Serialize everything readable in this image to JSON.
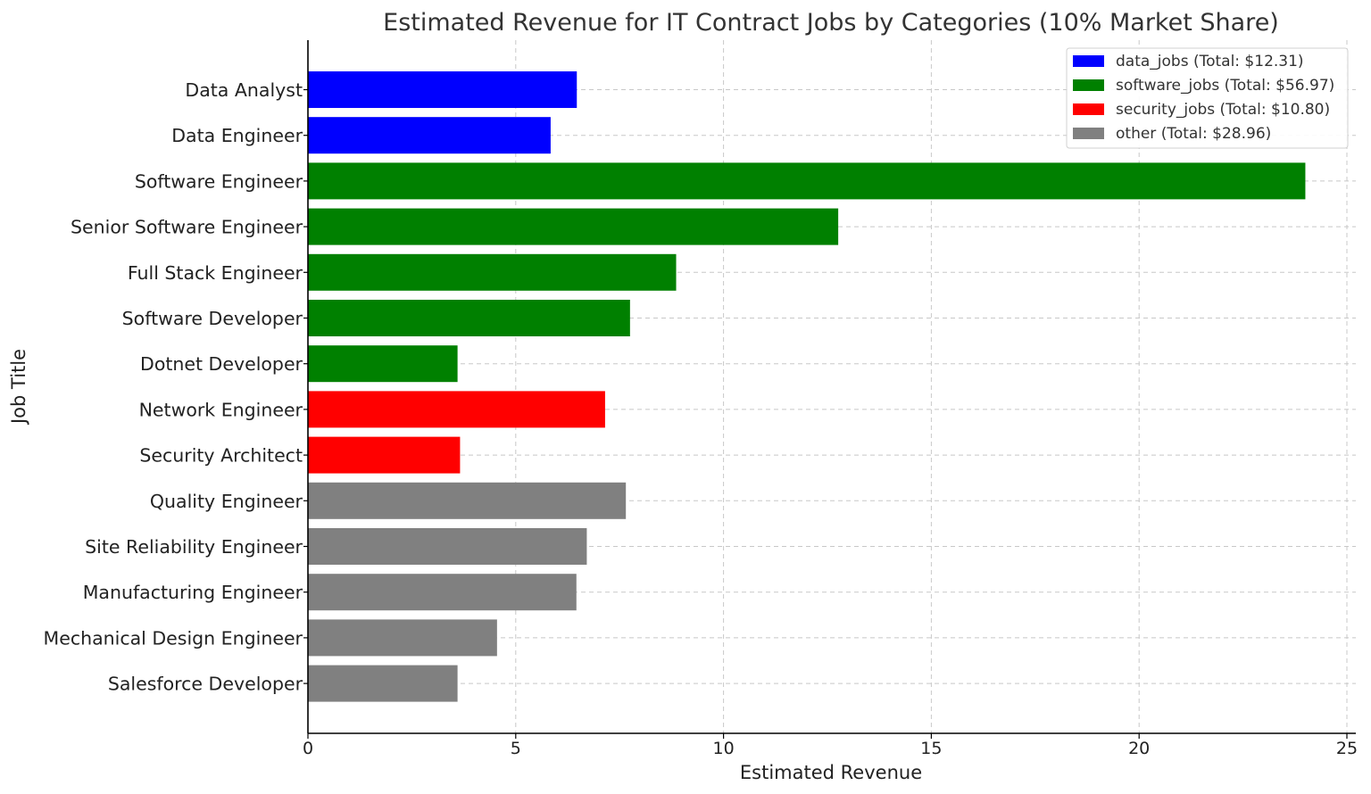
{
  "chart_data": {
    "type": "bar",
    "orientation": "horizontal",
    "title": "Estimated Revenue for IT Contract Jobs by Categories (10% Market Share)",
    "xlabel": "Estimated Revenue",
    "ylabel": "Job Title",
    "xlim": [
      0,
      25
    ],
    "xticks": [
      0,
      5,
      10,
      15,
      20,
      25
    ],
    "grid": true,
    "legend_position": "top-right",
    "categories": [
      "Data Analyst",
      "Data Engineer",
      "Software Engineer",
      "Senior Software Engineer",
      "Full Stack Engineer",
      "Software Developer",
      "Dotnet Developer",
      "Network Engineer",
      "Security Architect",
      "Quality Engineer",
      "Site Reliability Engineer",
      "Manufacturing Engineer",
      "Mechanical Design Engineer",
      "Salesforce Developer"
    ],
    "values": [
      6.47,
      5.84,
      24.0,
      12.76,
      8.86,
      7.75,
      3.6,
      7.15,
      3.66,
      7.65,
      6.71,
      6.46,
      4.55,
      3.6
    ],
    "bar_groups": [
      "data_jobs",
      "data_jobs",
      "software_jobs",
      "software_jobs",
      "software_jobs",
      "software_jobs",
      "software_jobs",
      "security_jobs",
      "security_jobs",
      "other",
      "other",
      "other",
      "other",
      "other"
    ],
    "series": [
      {
        "name": "data_jobs",
        "legend_label": "data_jobs (Total: $12.31)",
        "color": "#0000ff"
      },
      {
        "name": "software_jobs",
        "legend_label": "software_jobs (Total: $56.97)",
        "color": "#008000"
      },
      {
        "name": "security_jobs",
        "legend_label": "security_jobs (Total: $10.80)",
        "color": "#ff0000"
      },
      {
        "name": "other",
        "legend_label": "other (Total: $28.96)",
        "color": "#808080"
      }
    ]
  }
}
